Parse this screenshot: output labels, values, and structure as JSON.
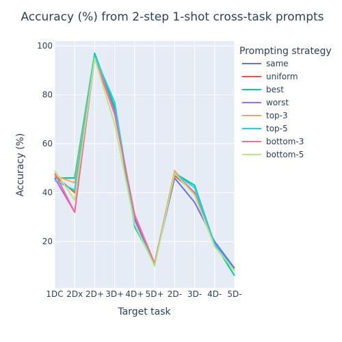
{
  "chart_data": {
    "type": "line",
    "title": "Accuracy (%) from 2-step 1-shot cross-task prompts",
    "xlabel": "Target task",
    "ylabel": "Accuracy (%)",
    "categories": [
      "1DC",
      "2Dx",
      "2D+",
      "3D+",
      "4D+",
      "5D+",
      "2D-",
      "3D-",
      "4D-",
      "5D-"
    ],
    "ylim": [
      1,
      102
    ],
    "yticks": [
      20,
      40,
      60,
      80,
      100
    ],
    "grid": true,
    "legend": {
      "title": "Prompting strategy",
      "placement": "right"
    },
    "series": [
      {
        "name": "same",
        "color": "#636efa",
        "values": [
          46,
          46,
          96,
          74,
          29,
          11,
          46,
          36,
          20,
          9
        ]
      },
      {
        "name": "uniform",
        "color": "#EF553B",
        "values": [
          47,
          40,
          96,
          74,
          30,
          11,
          47,
          40,
          19,
          8
        ]
      },
      {
        "name": "best",
        "color": "#00cc96",
        "values": [
          46,
          46,
          97,
          75,
          26,
          11,
          48,
          43,
          19,
          6
        ]
      },
      {
        "name": "worst",
        "color": "#ab63fa",
        "values": [
          46,
          32,
          96,
          73,
          30,
          11,
          48,
          40,
          19,
          8
        ]
      },
      {
        "name": "top-3",
        "color": "#FFA15A",
        "values": [
          47,
          44,
          96,
          72,
          31,
          11,
          49,
          39,
          18,
          8
        ]
      },
      {
        "name": "top-5",
        "color": "#19d3f3",
        "values": [
          45,
          41,
          96,
          77,
          27,
          11,
          48,
          42,
          19,
          8
        ]
      },
      {
        "name": "bottom-3",
        "color": "#FF6692",
        "values": [
          48,
          32,
          95,
          72,
          31,
          11,
          48,
          40,
          18,
          8
        ]
      },
      {
        "name": "bottom-5",
        "color": "#B6E880",
        "values": [
          49,
          37,
          95,
          68,
          27,
          10,
          48,
          39,
          18,
          8
        ]
      }
    ]
  }
}
